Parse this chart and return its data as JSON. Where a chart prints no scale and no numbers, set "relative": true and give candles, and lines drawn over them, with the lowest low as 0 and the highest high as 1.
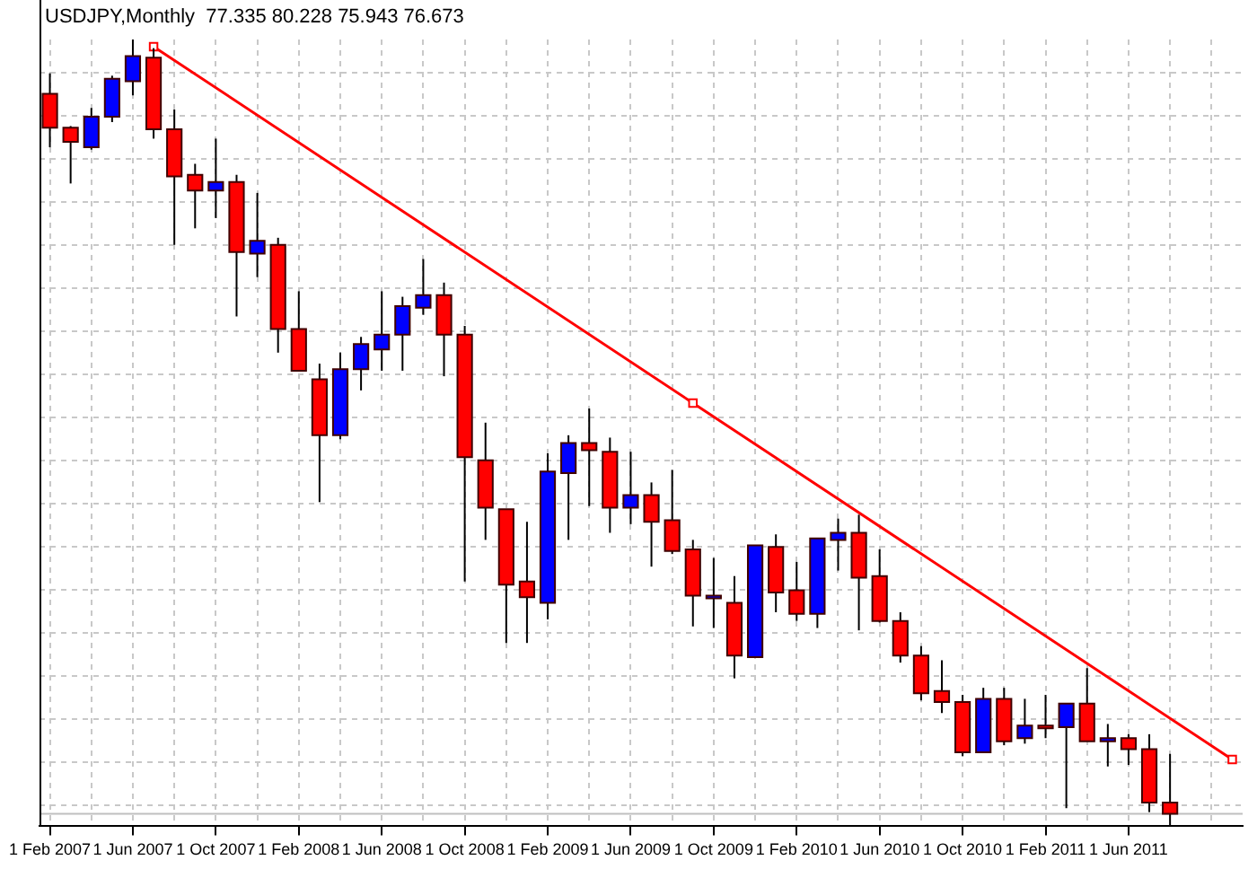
{
  "chart_data": {
    "type": "candlestick",
    "title": "USDJPY,Monthly  77.335 80.228 75.943 76.673",
    "relative": true,
    "grid": true,
    "marker": "square",
    "categories": [
      "1 Feb 2007",
      null,
      null,
      null,
      "1 Jun 2007",
      null,
      null,
      null,
      "1 Oct 2007",
      null,
      null,
      null,
      "1 Feb 2008",
      null,
      null,
      null,
      "1 Jun 2008",
      null,
      null,
      null,
      "1 Oct 2008",
      null,
      null,
      null,
      "1 Feb 2009",
      null,
      null,
      null,
      "1 Jun 2009",
      null,
      null,
      null,
      "1 Oct 2009",
      null,
      null,
      null,
      "1 Feb 2010",
      null,
      null,
      null,
      "1 Jun 2010",
      null,
      null,
      null,
      "1 Oct 2010",
      null,
      null,
      null,
      "1 Feb 2011",
      null,
      null,
      null,
      "1 Jun 2011",
      null,
      null,
      null,
      null,
      null
    ],
    "ohlc": [
      [
        0.931,
        0.957,
        0.863,
        0.888
      ],
      [
        0.888,
        0.89,
        0.817,
        0.87
      ],
      [
        0.863,
        0.913,
        0.86,
        0.902
      ],
      [
        0.902,
        0.954,
        0.895,
        0.95
      ],
      [
        0.947,
        1,
        0.929,
        0.979
      ],
      [
        0.977,
        0.989,
        0.874,
        0.886
      ],
      [
        0.886,
        0.911,
        0.739,
        0.826
      ],
      [
        0.828,
        0.842,
        0.76,
        0.808
      ],
      [
        0.808,
        0.874,
        0.773,
        0.819
      ],
      [
        0.819,
        0.828,
        0.648,
        0.73
      ],
      [
        0.728,
        0.805,
        0.698,
        0.744
      ],
      [
        0.739,
        0.748,
        0.602,
        0.632
      ],
      [
        0.632,
        0.68,
        0.579,
        0.579
      ],
      [
        0.568,
        0.588,
        0.412,
        0.497
      ],
      [
        0.497,
        0.602,
        0.492,
        0.581
      ],
      [
        0.581,
        0.622,
        0.554,
        0.613
      ],
      [
        0.606,
        0.68,
        0.579,
        0.625
      ],
      [
        0.625,
        0.673,
        0.579,
        0.661
      ],
      [
        0.659,
        0.721,
        0.65,
        0.675
      ],
      [
        0.675,
        0.691,
        0.572,
        0.625
      ],
      [
        0.625,
        0.636,
        0.311,
        0.469
      ],
      [
        0.465,
        0.513,
        0.364,
        0.405
      ],
      [
        0.403,
        0.403,
        0.233,
        0.307
      ],
      [
        0.311,
        0.387,
        0.233,
        0.291
      ],
      [
        0.284,
        0.474,
        0.263,
        0.451
      ],
      [
        0.449,
        0.497,
        0.364,
        0.487
      ],
      [
        0.487,
        0.531,
        0.407,
        0.478
      ],
      [
        0.476,
        0.494,
        0.373,
        0.405
      ],
      [
        0.405,
        0.476,
        0.384,
        0.421
      ],
      [
        0.421,
        0.437,
        0.33,
        0.387
      ],
      [
        0.389,
        0.453,
        0.346,
        0.35
      ],
      [
        0.352,
        0.364,
        0.254,
        0.293
      ],
      [
        0.291,
        0.341,
        0.252,
        0.293
      ],
      [
        0.284,
        0.318,
        0.188,
        0.217
      ],
      [
        0.215,
        0.357,
        0.215,
        0.357
      ],
      [
        0.355,
        0.371,
        0.272,
        0.297
      ],
      [
        0.3,
        0.336,
        0.261,
        0.27
      ],
      [
        0.27,
        0.366,
        0.252,
        0.366
      ],
      [
        0.364,
        0.391,
        0.325,
        0.373
      ],
      [
        0.373,
        0.396,
        0.249,
        0.316
      ],
      [
        0.318,
        0.352,
        0.259,
        0.261
      ],
      [
        0.261,
        0.272,
        0.208,
        0.217
      ],
      [
        0.217,
        0.229,
        0.16,
        0.169
      ],
      [
        0.172,
        0.211,
        0.144,
        0.158
      ],
      [
        0.158,
        0.167,
        0.089,
        0.094
      ],
      [
        0.094,
        0.176,
        0.094,
        0.162
      ],
      [
        0.162,
        0.176,
        0.103,
        0.108
      ],
      [
        0.112,
        0.162,
        0.105,
        0.128
      ],
      [
        0.128,
        0.167,
        0.112,
        0.126
      ],
      [
        0.126,
        0.156,
        0.023,
        0.156
      ],
      [
        0.156,
        0.201,
        0.108,
        0.108
      ],
      [
        0.108,
        0.13,
        0.076,
        0.112
      ],
      [
        0.112,
        0.117,
        0.078,
        0.098
      ],
      [
        0.098,
        0.117,
        0.018,
        0.03
      ],
      [
        0.03,
        0.092,
        0,
        0.016
      ],
      null,
      null,
      null
    ],
    "colors": [
      "#ff0000",
      "#ff0000",
      "#0000ff",
      "#0000ff",
      "#0000ff",
      "#ff0000",
      "#ff0000",
      "#ff0000",
      "#0000ff",
      "#ff0000",
      "#0000ff",
      "#ff0000",
      "#ff0000",
      "#ff0000",
      "#0000ff",
      "#0000ff",
      "#0000ff",
      "#0000ff",
      "#0000ff",
      "#ff0000",
      "#ff0000",
      "#ff0000",
      "#ff0000",
      "#ff0000",
      "#0000ff",
      "#0000ff",
      "#ff0000",
      "#ff0000",
      "#0000ff",
      "#ff0000",
      "#ff0000",
      "#ff0000",
      "#0000ff",
      "#ff0000",
      "#0000ff",
      "#ff0000",
      "#ff0000",
      "#0000ff",
      "#0000ff",
      "#ff0000",
      "#ff0000",
      "#ff0000",
      "#ff0000",
      "#ff0000",
      "#ff0000",
      "#0000ff",
      "#ff0000",
      "#0000ff",
      "#ff0000",
      "#0000ff",
      "#ff0000",
      "#0000ff",
      "#ff0000",
      "#ff0000",
      "#ff0000",
      null,
      null,
      null
    ],
    "series": [
      {
        "type": "line",
        "color": "#ff0000",
        "values": [
          null,
          null,
          null,
          null,
          null,
          0.991,
          null,
          null,
          null,
          null,
          null,
          null,
          null,
          null,
          null,
          null,
          null,
          null,
          null,
          null,
          null,
          null,
          null,
          null,
          null,
          null,
          null,
          null,
          null,
          null,
          null,
          0.538,
          null,
          null,
          null,
          null,
          null,
          null,
          null,
          null,
          null,
          null,
          null,
          null,
          null,
          null,
          null,
          null,
          null,
          null,
          null,
          null,
          null,
          null,
          null,
          null,
          null,
          0.085
        ]
      }
    ],
    "ref_lines": [
      {
        "axis": "y",
        "value": 0.016,
        "color": "#c0c0c0"
      }
    ]
  }
}
